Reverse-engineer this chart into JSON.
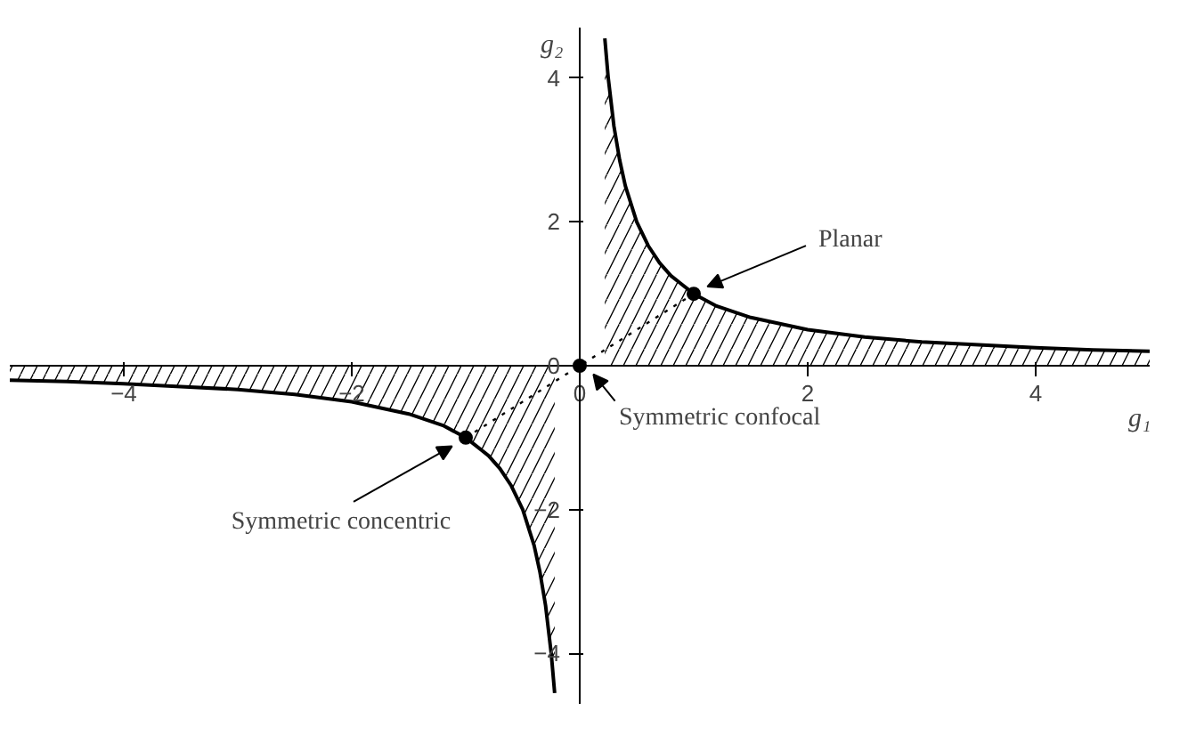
{
  "chart_data": {
    "type": "line",
    "xlabel": "g₁",
    "ylabel": "g₂",
    "xlim": [
      -5,
      5
    ],
    "ylim": [
      -4.7,
      4.7
    ],
    "xticks": [
      -4,
      -2,
      0,
      2,
      4
    ],
    "yticks": [
      -4,
      -2,
      0,
      2,
      4
    ],
    "grid": false,
    "series": [
      {
        "x": [
          0.22,
          0.25,
          0.3,
          0.35,
          0.4,
          0.5,
          0.6,
          0.7,
          0.8,
          1,
          1.2,
          1.5,
          2,
          2.5,
          3,
          3.5,
          4,
          4.5,
          5
        ],
        "values": [
          4.55,
          4,
          3.33,
          2.86,
          2.5,
          2,
          1.67,
          1.43,
          1.25,
          1,
          0.83,
          0.67,
          0.5,
          0.4,
          0.33,
          0.29,
          0.25,
          0.22,
          0.2
        ],
        "lower": [
          0,
          0,
          0,
          0,
          0,
          0,
          0,
          0,
          0,
          0,
          0,
          0,
          0,
          0,
          0,
          0,
          0,
          0,
          0
        ],
        "upper": [
          4.55,
          4,
          3.33,
          2.86,
          2.5,
          2,
          1.67,
          1.43,
          1.25,
          1,
          0.83,
          0.67,
          0.5,
          0.4,
          0.33,
          0.29,
          0.25,
          0.22,
          0.2
        ],
        "color": "#000000"
      },
      {
        "x": [
          -5,
          -4.5,
          -4,
          -3.5,
          -3,
          -2.5,
          -2,
          -1.5,
          -1.2,
          -1,
          -0.8,
          -0.7,
          -0.6,
          -0.5,
          -0.4,
          -0.35,
          -0.3,
          -0.25,
          -0.22
        ],
        "values": [
          -0.2,
          -0.22,
          -0.25,
          -0.29,
          -0.33,
          -0.4,
          -0.5,
          -0.67,
          -0.83,
          -1,
          -1.25,
          -1.43,
          -1.67,
          -2,
          -2.5,
          -2.86,
          -3.33,
          -4,
          -4.55
        ],
        "lower": [
          -0.2,
          -0.22,
          -0.25,
          -0.29,
          -0.33,
          -0.4,
          -0.5,
          -0.67,
          -0.83,
          -1,
          -1.25,
          -1.43,
          -1.67,
          -2,
          -2.5,
          -2.86,
          -3.33,
          -4,
          -4.55
        ],
        "upper": [
          0,
          0,
          0,
          0,
          0,
          0,
          0,
          0,
          0,
          0,
          0,
          0,
          0,
          0,
          0,
          0,
          0,
          0,
          0
        ],
        "color": "#000000"
      },
      {
        "x": [
          -1,
          1
        ],
        "values": [
          -1,
          1
        ],
        "color": "#000000",
        "line_style": "dotted"
      },
      {
        "type": "scatter",
        "x": [
          -1,
          0,
          1
        ],
        "values": [
          -1,
          0,
          1
        ],
        "color": "#000000",
        "marker": "circle"
      }
    ],
    "annotations": [
      {
        "text": "Planar",
        "x": 1,
        "y": 1
      },
      {
        "text": "Symmetric confocal",
        "x": 0,
        "y": 0
      },
      {
        "text": "Symmetric concentric",
        "x": -1,
        "y": -1
      }
    ]
  }
}
